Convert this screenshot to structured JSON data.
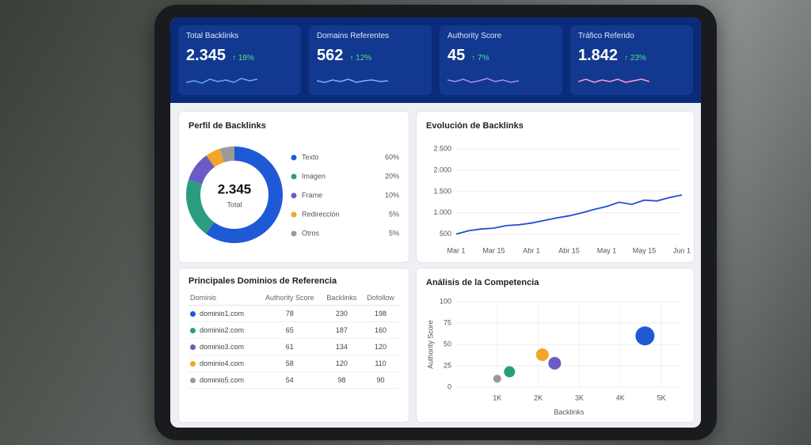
{
  "kpis": [
    {
      "label": "Total Backlinks",
      "value": "2.345",
      "change": "↑ 18%"
    },
    {
      "label": "Domains Referentes",
      "value": "562",
      "change": "↑ 12%"
    },
    {
      "label": "Authority Score",
      "value": "45",
      "change": "↑ 7%"
    },
    {
      "label": "Tráfico Referido",
      "value": "1.842",
      "change": "↑ 23%"
    }
  ],
  "chart_data": [
    {
      "type": "donut",
      "title": "Perfil de Backlinks",
      "center_label": "2.345",
      "center_sublabel": "Total",
      "categories": [
        "Texto",
        "Imagen",
        "Frame",
        "Redirección",
        "Otros"
      ],
      "values": [
        60,
        20,
        10,
        5,
        5
      ],
      "value_labels": [
        "60%",
        "20%",
        "10%",
        "5%",
        "5%"
      ],
      "colors": [
        "#1f5ad6",
        "#2a9d7f",
        "#6b5bc4",
        "#f2a52a",
        "#9a9a9a"
      ]
    },
    {
      "type": "line",
      "title": "Evolución de Backlinks",
      "categories": [
        "Mar 1",
        null,
        null,
        "Mar 15",
        null,
        null,
        "Abr 1",
        null,
        null,
        "Abr 15",
        null,
        null,
        "May 1",
        null,
        null,
        "May 15",
        null,
        null,
        "Jun 1"
      ],
      "values": [
        500,
        580,
        620,
        640,
        700,
        720,
        760,
        820,
        880,
        930,
        1000,
        1080,
        1150,
        1250,
        1200,
        1300,
        1280,
        1360,
        1420
      ],
      "color": "#1f4fd1",
      "ylim": [
        400,
        2600
      ],
      "yticks": [
        500,
        {
          "value": 1000,
          "label": "1.000"
        },
        {
          "value": 1500,
          "label": "1.500"
        },
        {
          "value": 2000,
          "label": "2.000"
        },
        {
          "value": 2500,
          "label": "2.500"
        }
      ],
      "grid": true
    },
    {
      "type": "scatter",
      "title": "Análisis de la Competencia",
      "x_label": "Backlinks",
      "y_label": "Authority Score",
      "x": [
        1000,
        1300,
        2100,
        2400,
        4600
      ],
      "values": [
        10,
        18,
        38,
        28,
        60
      ],
      "sizes": [
        5,
        7,
        8,
        8,
        12
      ],
      "colors": [
        "#9a9a9a",
        "#2a9d7f",
        "#f2a52a",
        "#6b5bc4",
        "#1f5ad6"
      ],
      "xlim": [
        0,
        5500
      ],
      "xticks": [
        {
          "value": 1000,
          "label": "1K"
        },
        {
          "value": 2000,
          "label": "2K"
        },
        {
          "value": 3000,
          "label": "3K"
        },
        {
          "value": 4000,
          "label": "4K"
        },
        {
          "value": 5000,
          "label": "5K"
        }
      ],
      "ylim": [
        0,
        100
      ],
      "yticks": [
        0,
        25,
        50,
        75,
        100
      ],
      "grid": true
    }
  ],
  "table": {
    "title": "Principales Dominios de Referencia",
    "columns": [
      "Dominio",
      "Authority Score",
      "Backlinks",
      "Dofollow"
    ],
    "rows": [
      [
        "dominio1.com",
        78,
        230,
        198
      ],
      [
        "dominio2.com",
        65,
        187,
        160
      ],
      [
        "dominio3.com",
        61,
        134,
        120
      ],
      [
        "dominio4.com",
        58,
        120,
        110
      ],
      [
        "dominio5.com",
        54,
        98,
        90
      ]
    ],
    "row_colors": [
      "#1f5ad6",
      "#2a9d7f",
      "#6b5bc4",
      "#f2a52a",
      "#9a9a9a"
    ]
  }
}
